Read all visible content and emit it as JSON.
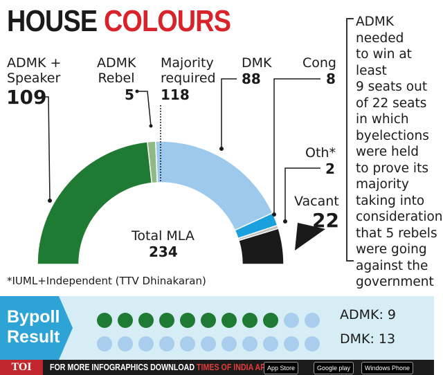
{
  "title": {
    "word1": "HOUSE",
    "word2": "COLOURS"
  },
  "chart_data": {
    "type": "pie",
    "variant": "half-donut",
    "title": "HOUSE COLOURS",
    "center_label": "Total MLA",
    "total": 234,
    "majority_label": "Majority\nrequired",
    "majority": 118,
    "slices": [
      {
        "label": "ADMK +\nSpeaker",
        "value": 109,
        "color": "#1f7a33"
      },
      {
        "label": "ADMK\nRebel",
        "value": 5,
        "color": "#8fba86"
      },
      {
        "label": "DMK",
        "value": 88,
        "color": "#9dcaec"
      },
      {
        "label": "Cong",
        "value": 8,
        "color": "#1aa0dc"
      },
      {
        "label": "Oth*",
        "value": 2,
        "color": "#bfbfbf"
      },
      {
        "label": "Vacant",
        "value": 22,
        "color": "#1a1a1a"
      }
    ]
  },
  "note": "ADMK needed\nto win at least\n9 seats out\nof 22 seats\nin which\nbyelections\nwere held\nto prove its\nmajority\ntaking into\nconsideration\nthat 5 rebels\nwere going\nagainst the\ngovernment",
  "footnote": "*IUML+Independent (TTV Dhinakaran)",
  "bypoll": {
    "label": "Bypoll\nResult",
    "rows": [
      {
        "label": "ADMK: 9",
        "wins": 9,
        "total": 11,
        "win_color": "#1f7a33",
        "other_color": "#a9cdec"
      },
      {
        "label": "DMK: 13",
        "wins": 0,
        "total": 11,
        "win_color": "#1f7a33",
        "other_color": "#a9cdec"
      }
    ],
    "band_color": "#d7edf5",
    "arrow_color": "#2ea3d6"
  },
  "footer": {
    "logo": "TOI",
    "text_white": "FOR MORE  INFOGRAPHICS DOWNLOAD ",
    "text_red": "TIMES OF INDIA APP",
    "badges": [
      "App Store",
      "Google play",
      "Windows Phone"
    ]
  }
}
